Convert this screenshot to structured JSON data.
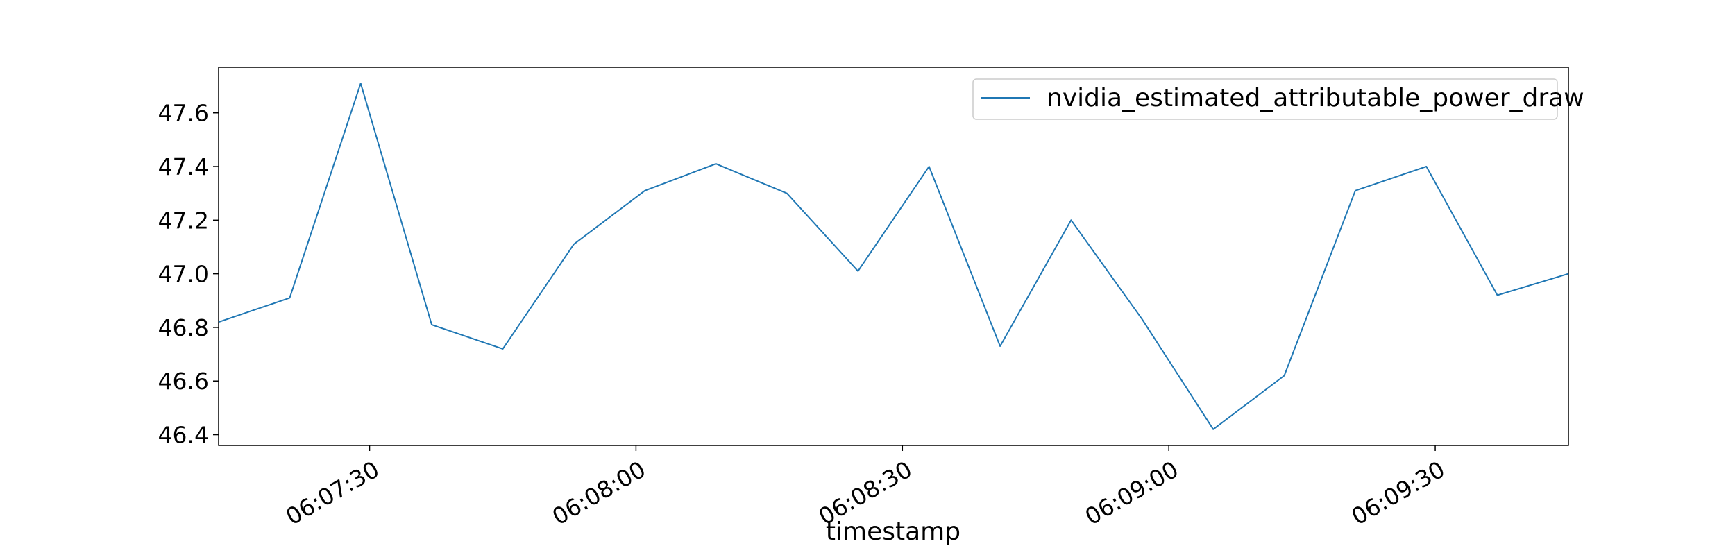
{
  "chart_data": {
    "type": "line",
    "title": "",
    "xlabel": "timestamp",
    "ylabel": "",
    "x": [
      "06:07:13",
      "06:07:21",
      "06:07:29",
      "06:07:37",
      "06:07:45",
      "06:07:53",
      "06:08:01",
      "06:08:09",
      "06:08:17",
      "06:08:25",
      "06:08:33",
      "06:08:41",
      "06:08:49",
      "06:08:57",
      "06:09:05",
      "06:09:13",
      "06:09:21",
      "06:09:29",
      "06:09:37",
      "06:09:45"
    ],
    "series": [
      {
        "name": "nvidia_estimated_attributable_power_draw",
        "color": "#1f77b4",
        "values": [
          46.82,
          46.91,
          47.71,
          46.81,
          46.72,
          47.11,
          47.31,
          47.41,
          47.3,
          47.01,
          47.4,
          46.73,
          47.2,
          46.83,
          46.42,
          46.62,
          47.31,
          47.4,
          46.92,
          47.0
        ]
      }
    ],
    "xlim": [
      "06:07:13",
      "06:09:45"
    ],
    "ylim": [
      46.36,
      47.77
    ],
    "x_ticks": [
      "06:07:30",
      "06:08:00",
      "06:08:30",
      "06:09:00",
      "06:09:30"
    ],
    "y_ticks": [
      "46.4",
      "46.6",
      "46.8",
      "47.0",
      "47.2",
      "47.4",
      "47.6"
    ],
    "grid": false,
    "legend_position": "top-right"
  }
}
